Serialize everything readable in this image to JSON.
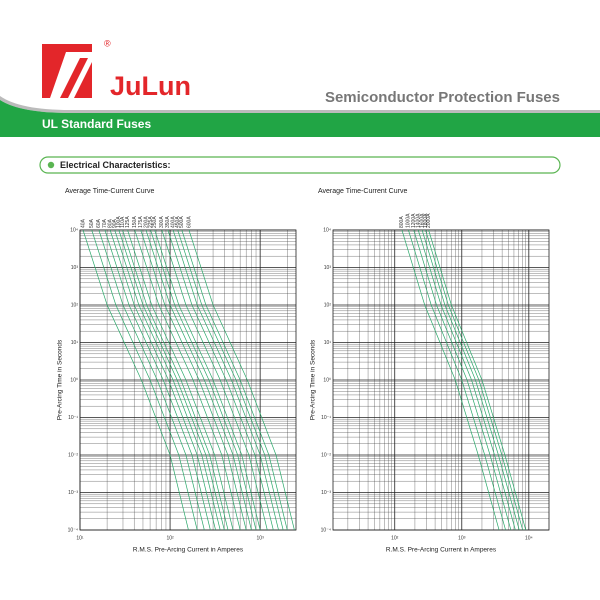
{
  "header": {
    "brand": "JuLun",
    "registered": "®",
    "product_line": "Semiconductor Protection Fuses",
    "banner": "UL Standard Fuses"
  },
  "section": {
    "title": "Electrical Characteristics:"
  },
  "chart_data": [
    {
      "type": "line",
      "title": "Average Time-Current Curve",
      "x_label": "R.M.S. Pre-Arcing Current in Amperes",
      "y_label": "Pre-Arcing Time in Seconds",
      "xscale": "log",
      "yscale": "log",
      "grid": true,
      "color": "#2aa86a",
      "xlim": [
        10,
        2500
      ],
      "ylim": [
        0.0001,
        10000
      ],
      "xticks": [
        {
          "value": 10,
          "label": "10¹"
        },
        {
          "value": 100,
          "label": "10²"
        },
        {
          "value": 1000,
          "label": "10³"
        }
      ],
      "yticks": [
        {
          "value": 10000,
          "label": "10⁴"
        },
        {
          "value": 1000,
          "label": "10³"
        },
        {
          "value": 100,
          "label": "10²"
        },
        {
          "value": 10,
          "label": "10¹"
        },
        {
          "value": 1,
          "label": "10⁰"
        },
        {
          "value": 0.1,
          "label": "10⁻¹"
        },
        {
          "value": 0.01,
          "label": "10⁻²"
        },
        {
          "value": 0.001,
          "label": "10⁻³"
        },
        {
          "value": 0.0001,
          "label": "10⁻⁴"
        }
      ],
      "series": [
        {
          "name": "40A",
          "x": [
            10.8,
            20,
            48,
            100,
            160
          ],
          "values": [
            10000,
            100,
            1,
            0.01,
            0.0001
          ]
        },
        {
          "name": "50A",
          "x": [
            13.5,
            25,
            60,
            125,
            200
          ],
          "values": [
            10000,
            100,
            1,
            0.01,
            0.0001
          ]
        },
        {
          "name": "60A",
          "x": [
            16.2,
            30,
            72,
            150,
            240
          ],
          "values": [
            10000,
            100,
            1,
            0.01,
            0.0001
          ]
        },
        {
          "name": "70A",
          "x": [
            18.9,
            35,
            84,
            175,
            280
          ],
          "values": [
            10000,
            100,
            1,
            0.01,
            0.0001
          ]
        },
        {
          "name": "80A",
          "x": [
            21.6,
            40,
            96,
            200,
            320
          ],
          "values": [
            10000,
            100,
            1,
            0.01,
            0.0001
          ]
        },
        {
          "name": "90A",
          "x": [
            24.3,
            45,
            108,
            225,
            360
          ],
          "values": [
            10000,
            100,
            1,
            0.01,
            0.0001
          ]
        },
        {
          "name": "100A",
          "x": [
            27,
            50,
            120,
            250,
            400
          ],
          "values": [
            10000,
            100,
            1,
            0.01,
            0.0001
          ]
        },
        {
          "name": "110A",
          "x": [
            29.7,
            55,
            132,
            275,
            440
          ],
          "values": [
            10000,
            100,
            1,
            0.01,
            0.0001
          ]
        },
        {
          "name": "125A",
          "x": [
            33.75,
            62.5,
            150,
            312.5,
            500
          ],
          "values": [
            10000,
            100,
            1,
            0.01,
            0.0001
          ]
        },
        {
          "name": "150A",
          "x": [
            40.5,
            75,
            180,
            375,
            600
          ],
          "values": [
            10000,
            100,
            1,
            0.01,
            0.0001
          ]
        },
        {
          "name": "175A",
          "x": [
            47.25,
            87.5,
            210,
            437.5,
            700
          ],
          "values": [
            10000,
            100,
            1,
            0.01,
            0.0001
          ]
        },
        {
          "name": "200A",
          "x": [
            54,
            100,
            240,
            500,
            800
          ],
          "values": [
            10000,
            100,
            1,
            0.01,
            0.0001
          ]
        },
        {
          "name": "225A",
          "x": [
            60.75,
            112.5,
            270,
            562.5,
            900
          ],
          "values": [
            10000,
            100,
            1,
            0.01,
            0.0001
          ]
        },
        {
          "name": "250A",
          "x": [
            67.5,
            125,
            300,
            625,
            1000
          ],
          "values": [
            10000,
            100,
            1,
            0.01,
            0.0001
          ]
        },
        {
          "name": "300A",
          "x": [
            81,
            150,
            360,
            750,
            1200
          ],
          "values": [
            10000,
            100,
            1,
            0.01,
            0.0001
          ]
        },
        {
          "name": "350A",
          "x": [
            94.5,
            175,
            420,
            875,
            1400
          ],
          "values": [
            10000,
            100,
            1,
            0.01,
            0.0001
          ]
        },
        {
          "name": "400A",
          "x": [
            108,
            200,
            480,
            1000,
            1600
          ],
          "values": [
            10000,
            100,
            1,
            0.01,
            0.0001
          ]
        },
        {
          "name": "450A",
          "x": [
            121.5,
            225,
            540,
            1125,
            1800
          ],
          "values": [
            10000,
            100,
            1,
            0.01,
            0.0001
          ]
        },
        {
          "name": "500A",
          "x": [
            135,
            250,
            600,
            1250,
            2000
          ],
          "values": [
            10000,
            100,
            1,
            0.01,
            0.0001
          ]
        },
        {
          "name": "600A",
          "x": [
            162,
            300,
            720,
            1500,
            2400
          ],
          "values": [
            10000,
            100,
            1,
            0.01,
            0.0001
          ]
        }
      ]
    },
    {
      "type": "line",
      "title": "Average Time-Current Curve",
      "x_label": "R.M.S. Pre-Arcing Current in Amperes",
      "y_label": "Pre-Arcing Time in Seconds",
      "xscale": "log",
      "yscale": "log",
      "grid": true,
      "color": "#2aa86a",
      "xlim": [
        12,
        20000
      ],
      "ylim": [
        0.0001,
        10000
      ],
      "xticks": [
        {
          "value": 100,
          "label": "10²"
        },
        {
          "value": 1000,
          "label": "10³"
        },
        {
          "value": 10000,
          "label": "10⁴"
        }
      ],
      "yticks": [
        {
          "value": 10000,
          "label": "10⁴"
        },
        {
          "value": 1000,
          "label": "10³"
        },
        {
          "value": 100,
          "label": "10²"
        },
        {
          "value": 10,
          "label": "10¹"
        },
        {
          "value": 1,
          "label": "10⁰"
        },
        {
          "value": 0.1,
          "label": "10⁻¹"
        },
        {
          "value": 0.01,
          "label": "10⁻²"
        },
        {
          "value": 0.001,
          "label": "10⁻³"
        },
        {
          "value": 0.0001,
          "label": "10⁻⁴"
        }
      ],
      "series": [
        {
          "name": "800A",
          "x": [
            128,
            280,
            800,
            1760,
            3600
          ],
          "values": [
            10000,
            100,
            1,
            0.01,
            0.0001
          ]
        },
        {
          "name": "1000A",
          "x": [
            160,
            350,
            1000,
            2200,
            4500
          ],
          "values": [
            10000,
            100,
            1,
            0.01,
            0.0001
          ]
        },
        {
          "name": "1200A",
          "x": [
            192,
            420,
            1200,
            2640,
            5400
          ],
          "values": [
            10000,
            100,
            1,
            0.01,
            0.0001
          ]
        },
        {
          "name": "1400A",
          "x": [
            224,
            490,
            1400,
            3080,
            6300
          ],
          "values": [
            10000,
            100,
            1,
            0.01,
            0.0001
          ]
        },
        {
          "name": "1600A",
          "x": [
            256,
            560,
            1600,
            3520,
            7200
          ],
          "values": [
            10000,
            100,
            1,
            0.01,
            0.0001
          ]
        },
        {
          "name": "1800A",
          "x": [
            288,
            630,
            1800,
            3960,
            8100
          ],
          "values": [
            10000,
            100,
            1,
            0.01,
            0.0001
          ]
        },
        {
          "name": "2000A",
          "x": [
            320,
            700,
            2000,
            4400,
            9000
          ],
          "values": [
            10000,
            100,
            1,
            0.01,
            0.0001
          ]
        }
      ]
    }
  ]
}
